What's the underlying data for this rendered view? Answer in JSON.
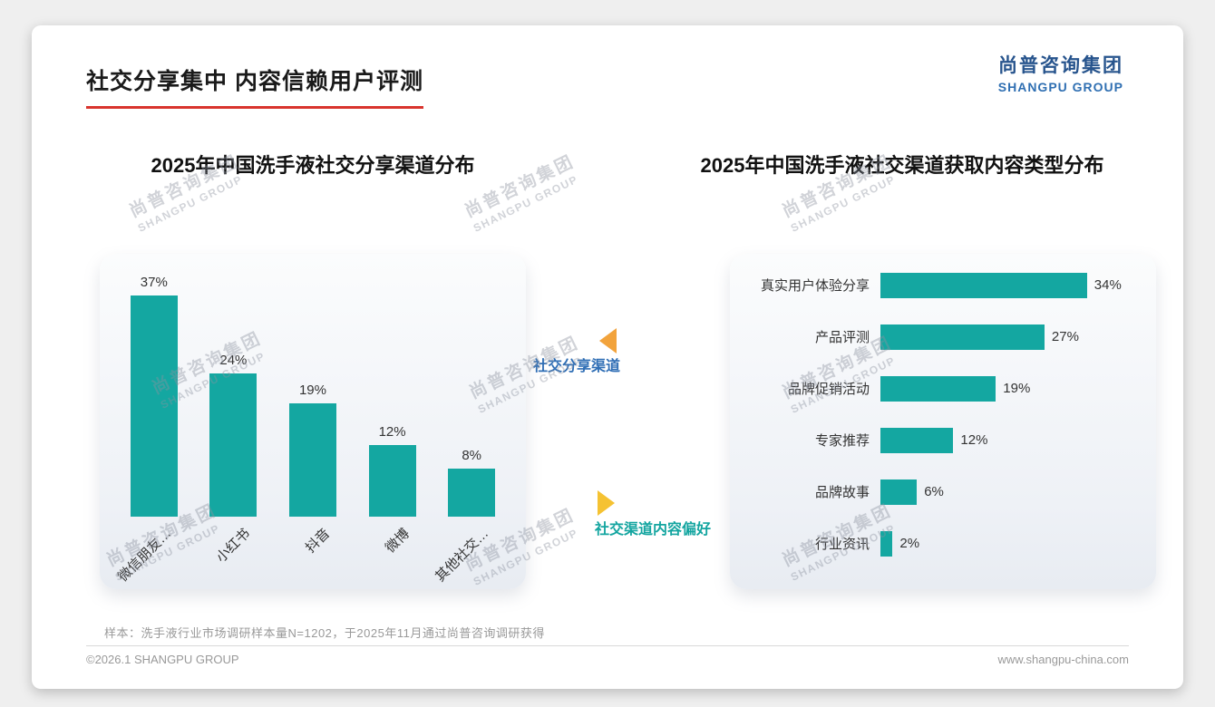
{
  "page": {
    "title": "社交分享集中 内容信赖用户评测",
    "logo": {
      "cn": "尚普咨询集团",
      "en": "SHANGPU GROUP"
    },
    "watermark": {
      "cn": "尚普咨询集团",
      "en": "SHANGPU GROUP"
    },
    "annotations": {
      "share_channel": "社交分享渠道",
      "content_preference": "社交渠道内容偏好"
    },
    "footer": {
      "sample_note": "样本：洗手液行业市场调研样本量N=1202，于2025年11月通过尚普咨询调研获得",
      "copyright": "©2026.1 SHANGPU GROUP",
      "website": "www.shangpu-china.com"
    },
    "colors": {
      "bar_teal": "#14A7A1",
      "accent_red": "#D9342E",
      "brand_blue_dark": "#27548D",
      "brand_blue": "#2F6FB2",
      "annotation_blue": "#2F6EB5",
      "annotation_teal": "#13A5A0",
      "arrow_orange": "#F2A33C",
      "arrow_yellow": "#F5C232"
    }
  },
  "chart_data": [
    {
      "type": "bar",
      "orientation": "vertical",
      "title": "2025年中国洗手液社交分享渠道分布",
      "categories": [
        "微信朋友…",
        "小红书",
        "抖音",
        "微博",
        "其他社交…"
      ],
      "values": [
        37,
        24,
        19,
        12,
        8
      ],
      "unit": "%",
      "bar_color": "#14A7A1",
      "ylim": [
        0,
        40
      ],
      "grid": false,
      "legend": false
    },
    {
      "type": "bar",
      "orientation": "horizontal",
      "title": "2025年中国洗手液社交渠道获取内容类型分布",
      "categories": [
        "真实用户体验分享",
        "产品评测",
        "品牌促销活动",
        "专家推荐",
        "品牌故事",
        "行业资讯"
      ],
      "values": [
        34,
        27,
        19,
        12,
        6,
        2
      ],
      "unit": "%",
      "bar_color": "#14A7A1",
      "xlim": [
        0,
        40
      ],
      "grid": false,
      "legend": false
    }
  ]
}
